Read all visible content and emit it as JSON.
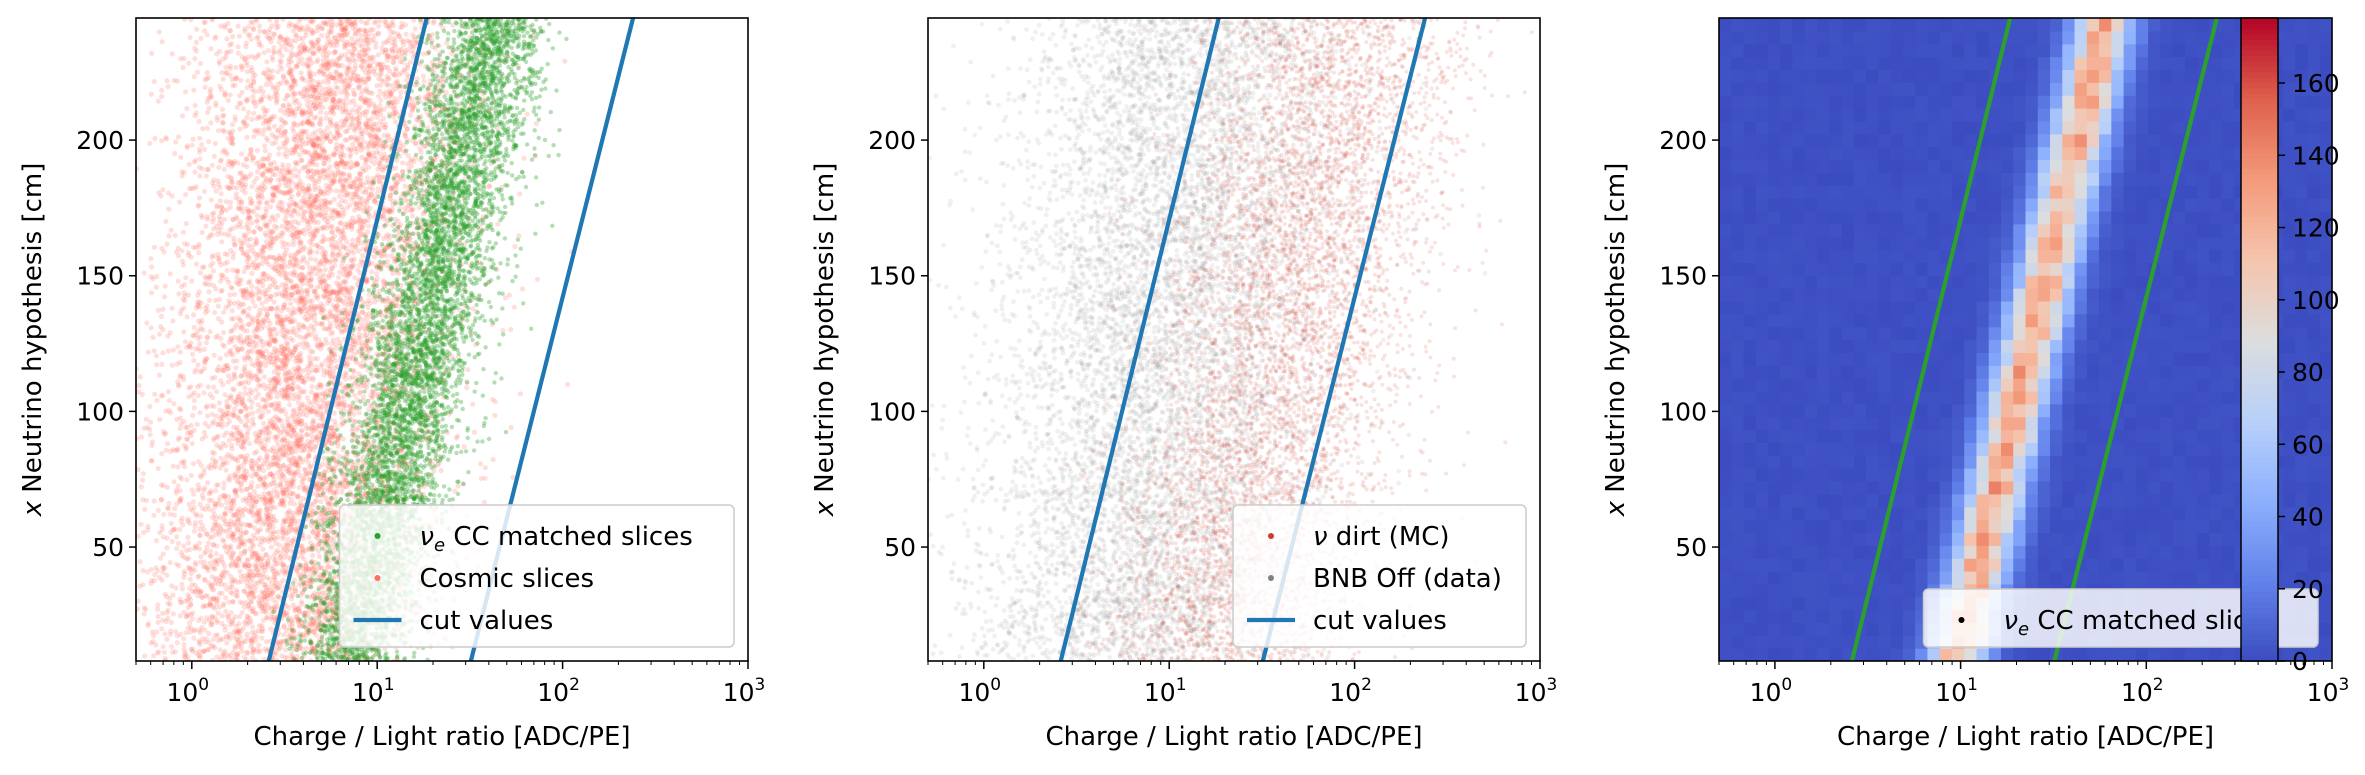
{
  "colors": {
    "nue": "#2ca02c",
    "cosmic": "#ff6f61",
    "dirt": "#d03c2a",
    "bnb_off": "#808080",
    "cut": "#1f77b4",
    "cut_panel3": "#2ca02c"
  },
  "chart_data": [
    {
      "type": "scatter",
      "xlabel": "Charge / Light ratio [ADC/PE]",
      "ylabel": "x Neutrino hypothesis [cm]",
      "xscale": "log",
      "xlim": [
        0.5,
        1000
      ],
      "ylim": [
        8,
        245
      ],
      "x_ticks": [
        "10^0",
        "10^1",
        "10^2",
        "10^3"
      ],
      "y_ticks": [
        50,
        100,
        150,
        200
      ],
      "legend_loc": "lower-right",
      "legend": [
        "ν_e CC matched slices",
        "Cosmic slices",
        "cut values"
      ],
      "series": [
        {
          "name": "ν_e CC matched slices",
          "kind": "scatter",
          "color": "#2ca02c",
          "band": {
            "y": [
              8,
              245
            ],
            "log10_x_center": [
              0.85,
              1.63
            ],
            "log10_x_sigma": 0.15
          }
        },
        {
          "name": "Cosmic slices",
          "kind": "scatter",
          "color": "#ff6f61",
          "band": {
            "y": [
              8,
              245
            ],
            "log10_x_center": [
              0.45,
              0.8
            ],
            "log10_x_sigma": 0.38
          }
        },
        {
          "name": "cut values",
          "kind": "line",
          "color": "#1f77b4",
          "lines": [
            {
              "x": [
                2.6,
                18.5
              ],
              "y": [
                8,
                245
              ]
            },
            {
              "x": [
                32,
                240
              ],
              "y": [
                8,
                245
              ]
            }
          ]
        }
      ]
    },
    {
      "type": "scatter",
      "xlabel": "Charge / Light ratio [ADC/PE]",
      "ylabel": "x Neutrino hypothesis [cm]",
      "xscale": "log",
      "xlim": [
        0.5,
        1000
      ],
      "ylim": [
        8,
        245
      ],
      "x_ticks": [
        "10^0",
        "10^1",
        "10^2",
        "10^3"
      ],
      "y_ticks": [
        50,
        100,
        150,
        200
      ],
      "legend_loc": "lower-right",
      "legend": [
        "ν dirt (MC)",
        "BNB Off (data)",
        "cut values"
      ],
      "series": [
        {
          "name": "BNB Off (data)",
          "kind": "scatter",
          "color": "#808080",
          "band": {
            "y": [
              8,
              245
            ],
            "log10_x_center": [
              0.75,
              1.15
            ],
            "log10_x_sigma": 0.45
          }
        },
        {
          "name": "ν dirt (MC)",
          "kind": "scatter",
          "color": "#d03c2a",
          "band": {
            "y": [
              8,
              245
            ],
            "log10_x_center": [
              1.3,
              1.95
            ],
            "log10_x_sigma": 0.35
          }
        },
        {
          "name": "cut values",
          "kind": "line",
          "color": "#1f77b4",
          "lines": [
            {
              "x": [
                2.6,
                18.5
              ],
              "y": [
                8,
                245
              ]
            },
            {
              "x": [
                32,
                240
              ],
              "y": [
                8,
                245
              ]
            }
          ]
        }
      ]
    },
    {
      "type": "heatmap",
      "xlabel": "Charge / Light ratio [ADC/PE]",
      "ylabel": "x Neutrino hypothesis [cm]",
      "xscale": "log",
      "xlim": [
        0.5,
        1000
      ],
      "ylim": [
        8,
        245
      ],
      "x_ticks": [
        "10^0",
        "10^1",
        "10^2",
        "10^3"
      ],
      "y_ticks": [
        50,
        100,
        150,
        200
      ],
      "legend_loc": "lower-right",
      "legend": [
        "ν_e CC matched slices"
      ],
      "colorbar": {
        "range": [
          0,
          178
        ],
        "ticks": [
          0,
          20,
          40,
          60,
          80,
          100,
          120,
          140,
          160
        ],
        "cmap": "coolwarm"
      },
      "grid": {
        "nx": 50,
        "ny": 50,
        "band_log10_x_center": [
          0.98,
          1.78
        ],
        "band_log10_x_sigma": 0.11,
        "peak": 120
      },
      "series": [
        {
          "name": "cut values",
          "kind": "line",
          "color": "#2ca02c",
          "lines": [
            {
              "x": [
                2.6,
                18.5
              ],
              "y": [
                8,
                245
              ]
            },
            {
              "x": [
                32,
                240
              ],
              "y": [
                8,
                245
              ]
            }
          ]
        }
      ]
    }
  ]
}
